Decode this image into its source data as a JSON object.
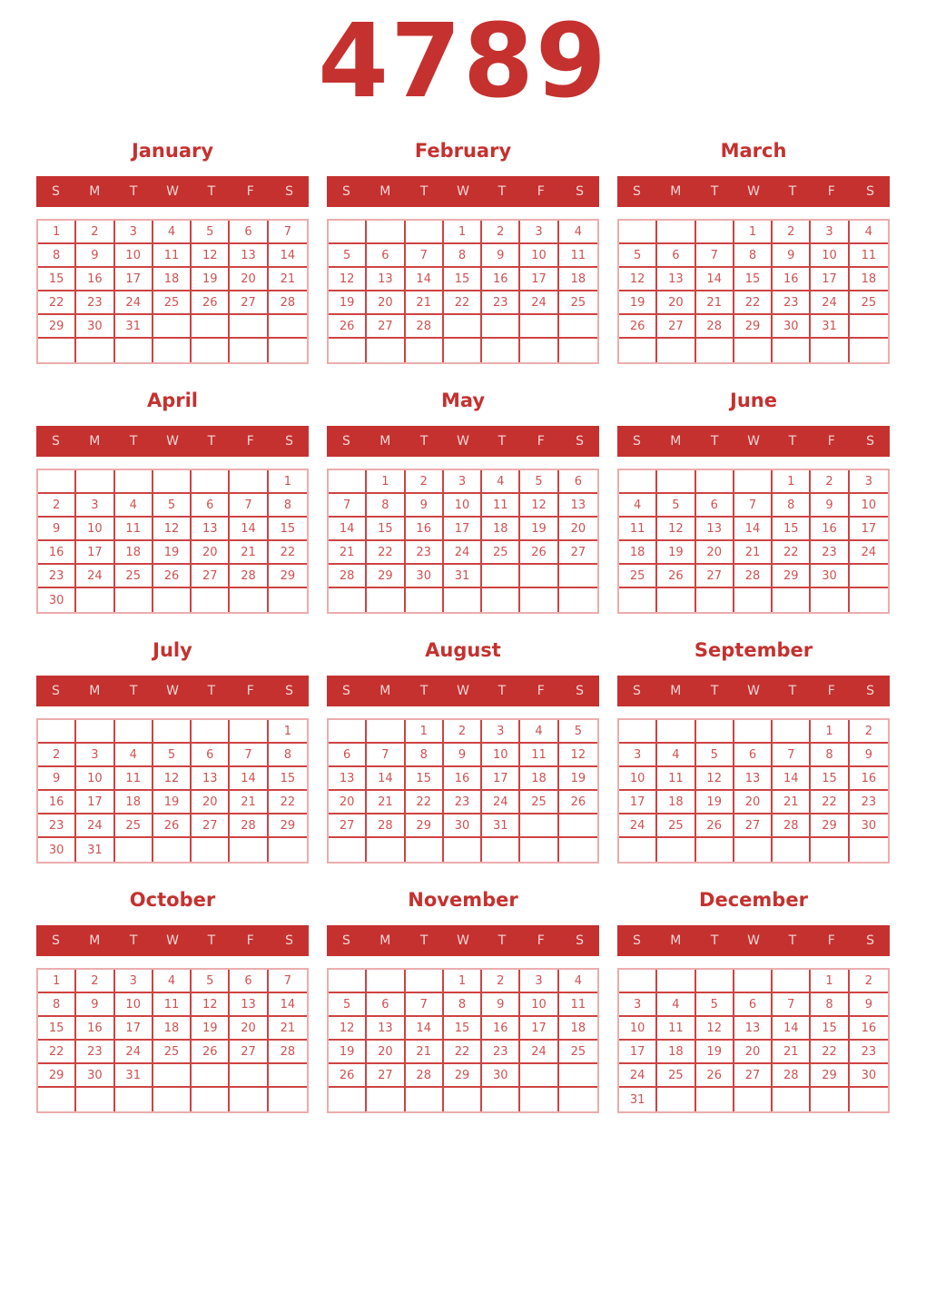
{
  "page": {
    "year": "4789"
  },
  "colors": {
    "primary_red": "#c5312f",
    "date_red": "#d05151",
    "border_inner": "#ce4343",
    "border_outer": "#ecacac",
    "weekday_text": "#f2d7d7",
    "background": "#ffffff"
  },
  "weekday_labels": [
    "S",
    "M",
    "T",
    "W",
    "T",
    "F",
    "S"
  ],
  "months": [
    {
      "name": "January",
      "weeks": [
        [
          "1",
          "2",
          "3",
          "4",
          "5",
          "6",
          "7"
        ],
        [
          "8",
          "9",
          "10",
          "11",
          "12",
          "13",
          "14"
        ],
        [
          "15",
          "16",
          "17",
          "18",
          "19",
          "20",
          "21"
        ],
        [
          "22",
          "23",
          "24",
          "25",
          "26",
          "27",
          "28"
        ],
        [
          "29",
          "30",
          "31",
          "",
          "",
          "",
          ""
        ],
        [
          "",
          "",
          "",
          "",
          "",
          "",
          ""
        ]
      ]
    },
    {
      "name": "February",
      "weeks": [
        [
          "",
          "",
          "",
          "1",
          "2",
          "3",
          "4"
        ],
        [
          "5",
          "6",
          "7",
          "8",
          "9",
          "10",
          "11"
        ],
        [
          "12",
          "13",
          "14",
          "15",
          "16",
          "17",
          "18"
        ],
        [
          "19",
          "20",
          "21",
          "22",
          "23",
          "24",
          "25"
        ],
        [
          "26",
          "27",
          "28",
          "",
          "",
          "",
          ""
        ],
        [
          "",
          "",
          "",
          "",
          "",
          "",
          ""
        ]
      ]
    },
    {
      "name": "March",
      "weeks": [
        [
          "",
          "",
          "",
          "1",
          "2",
          "3",
          "4"
        ],
        [
          "5",
          "6",
          "7",
          "8",
          "9",
          "10",
          "11"
        ],
        [
          "12",
          "13",
          "14",
          "15",
          "16",
          "17",
          "18"
        ],
        [
          "19",
          "20",
          "21",
          "22",
          "23",
          "24",
          "25"
        ],
        [
          "26",
          "27",
          "28",
          "29",
          "30",
          "31",
          ""
        ],
        [
          "",
          "",
          "",
          "",
          "",
          "",
          ""
        ]
      ]
    },
    {
      "name": "April",
      "weeks": [
        [
          "",
          "",
          "",
          "",
          "",
          "",
          "1"
        ],
        [
          "2",
          "3",
          "4",
          "5",
          "6",
          "7",
          "8"
        ],
        [
          "9",
          "10",
          "11",
          "12",
          "13",
          "14",
          "15"
        ],
        [
          "16",
          "17",
          "18",
          "19",
          "20",
          "21",
          "22"
        ],
        [
          "23",
          "24",
          "25",
          "26",
          "27",
          "28",
          "29"
        ],
        [
          "30",
          "",
          "",
          "",
          "",
          "",
          ""
        ]
      ]
    },
    {
      "name": "May",
      "weeks": [
        [
          "",
          "1",
          "2",
          "3",
          "4",
          "5",
          "6"
        ],
        [
          "7",
          "8",
          "9",
          "10",
          "11",
          "12",
          "13"
        ],
        [
          "14",
          "15",
          "16",
          "17",
          "18",
          "19",
          "20"
        ],
        [
          "21",
          "22",
          "23",
          "24",
          "25",
          "26",
          "27"
        ],
        [
          "28",
          "29",
          "30",
          "31",
          "",
          "",
          ""
        ],
        [
          "",
          "",
          "",
          "",
          "",
          "",
          ""
        ]
      ]
    },
    {
      "name": "June",
      "weeks": [
        [
          "",
          "",
          "",
          "",
          "1",
          "2",
          "3"
        ],
        [
          "4",
          "5",
          "6",
          "7",
          "8",
          "9",
          "10"
        ],
        [
          "11",
          "12",
          "13",
          "14",
          "15",
          "16",
          "17"
        ],
        [
          "18",
          "19",
          "20",
          "21",
          "22",
          "23",
          "24"
        ],
        [
          "25",
          "26",
          "27",
          "28",
          "29",
          "30",
          ""
        ],
        [
          "",
          "",
          "",
          "",
          "",
          "",
          ""
        ]
      ]
    },
    {
      "name": "July",
      "weeks": [
        [
          "",
          "",
          "",
          "",
          "",
          "",
          "1"
        ],
        [
          "2",
          "3",
          "4",
          "5",
          "6",
          "7",
          "8"
        ],
        [
          "9",
          "10",
          "11",
          "12",
          "13",
          "14",
          "15"
        ],
        [
          "16",
          "17",
          "18",
          "19",
          "20",
          "21",
          "22"
        ],
        [
          "23",
          "24",
          "25",
          "26",
          "27",
          "28",
          "29"
        ],
        [
          "30",
          "31",
          "",
          "",
          "",
          "",
          ""
        ]
      ]
    },
    {
      "name": "August",
      "weeks": [
        [
          "",
          "",
          "1",
          "2",
          "3",
          "4",
          "5"
        ],
        [
          "6",
          "7",
          "8",
          "9",
          "10",
          "11",
          "12"
        ],
        [
          "13",
          "14",
          "15",
          "16",
          "17",
          "18",
          "19"
        ],
        [
          "20",
          "21",
          "22",
          "23",
          "24",
          "25",
          "26"
        ],
        [
          "27",
          "28",
          "29",
          "30",
          "31",
          "",
          ""
        ],
        [
          "",
          "",
          "",
          "",
          "",
          "",
          ""
        ]
      ]
    },
    {
      "name": "September",
      "weeks": [
        [
          "",
          "",
          "",
          "",
          "",
          "1",
          "2"
        ],
        [
          "3",
          "4",
          "5",
          "6",
          "7",
          "8",
          "9"
        ],
        [
          "10",
          "11",
          "12",
          "13",
          "14",
          "15",
          "16"
        ],
        [
          "17",
          "18",
          "19",
          "20",
          "21",
          "22",
          "23"
        ],
        [
          "24",
          "25",
          "26",
          "27",
          "28",
          "29",
          "30"
        ],
        [
          "",
          "",
          "",
          "",
          "",
          "",
          ""
        ]
      ]
    },
    {
      "name": "October",
      "weeks": [
        [
          "1",
          "2",
          "3",
          "4",
          "5",
          "6",
          "7"
        ],
        [
          "8",
          "9",
          "10",
          "11",
          "12",
          "13",
          "14"
        ],
        [
          "15",
          "16",
          "17",
          "18",
          "19",
          "20",
          "21"
        ],
        [
          "22",
          "23",
          "24",
          "25",
          "26",
          "27",
          "28"
        ],
        [
          "29",
          "30",
          "31",
          "",
          "",
          "",
          ""
        ],
        [
          "",
          "",
          "",
          "",
          "",
          "",
          ""
        ]
      ]
    },
    {
      "name": "November",
      "weeks": [
        [
          "",
          "",
          "",
          "1",
          "2",
          "3",
          "4"
        ],
        [
          "5",
          "6",
          "7",
          "8",
          "9",
          "10",
          "11"
        ],
        [
          "12",
          "13",
          "14",
          "15",
          "16",
          "17",
          "18"
        ],
        [
          "19",
          "20",
          "21",
          "22",
          "23",
          "24",
          "25"
        ],
        [
          "26",
          "27",
          "28",
          "29",
          "30",
          "",
          ""
        ],
        [
          "",
          "",
          "",
          "",
          "",
          "",
          ""
        ]
      ]
    },
    {
      "name": "December",
      "weeks": [
        [
          "",
          "",
          "",
          "",
          "",
          "1",
          "2"
        ],
        [
          "3",
          "4",
          "5",
          "6",
          "7",
          "8",
          "9"
        ],
        [
          "10",
          "11",
          "12",
          "13",
          "14",
          "15",
          "16"
        ],
        [
          "17",
          "18",
          "19",
          "20",
          "21",
          "22",
          "23"
        ],
        [
          "24",
          "25",
          "26",
          "27",
          "28",
          "29",
          "30"
        ],
        [
          "31",
          "",
          "",
          "",
          "",
          "",
          ""
        ]
      ]
    }
  ]
}
